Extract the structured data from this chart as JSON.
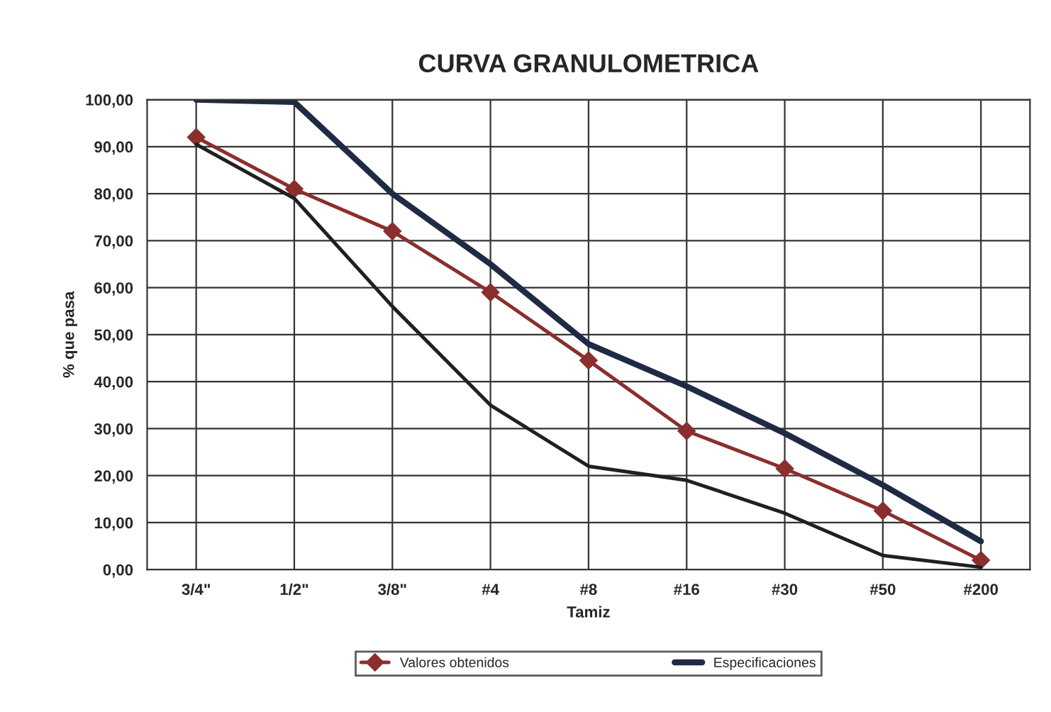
{
  "chart_data": {
    "type": "line",
    "title": "CURVA GRANULOMETRICA",
    "xlabel": "Tamiz",
    "ylabel": "% que pasa",
    "categories": [
      "3/4\"",
      "1/2\"",
      "3/8\"",
      "#4",
      "#8",
      "#16",
      "#30",
      "#50",
      "#200"
    ],
    "series": [
      {
        "name": "Valores obtenidos",
        "color": "#8b2e2e",
        "marker": "diamond",
        "values": [
          92,
          81,
          72,
          59,
          44.5,
          29.5,
          21.5,
          12.5,
          2
        ]
      },
      {
        "name": "Especificaciones",
        "color": "#1f2a44",
        "marker": "none",
        "values": [
          100,
          99.5,
          80,
          65,
          48,
          39,
          29,
          18,
          6
        ]
      },
      {
        "color": "#202020",
        "marker": "none",
        "values": [
          90.5,
          79,
          56,
          35,
          22,
          19,
          12,
          3,
          0.5
        ]
      }
    ],
    "ylim": [
      0,
      100
    ],
    "yticks": [
      {
        "value": 0,
        "label": "0,00"
      },
      {
        "value": 10,
        "label": "10,00"
      },
      {
        "value": 20,
        "label": "20,00"
      },
      {
        "value": 30,
        "label": "30,00"
      },
      {
        "value": 40,
        "label": "40,00"
      },
      {
        "value": 50,
        "label": "50,00"
      },
      {
        "value": 60,
        "label": "60,00"
      },
      {
        "value": 70,
        "label": "70,00"
      },
      {
        "value": 80,
        "label": "80,00"
      },
      {
        "value": 90,
        "label": "90,00"
      },
      {
        "value": 100,
        "label": "100,00"
      }
    ],
    "grid": true,
    "legend": "bottom",
    "line_style": "solid"
  }
}
